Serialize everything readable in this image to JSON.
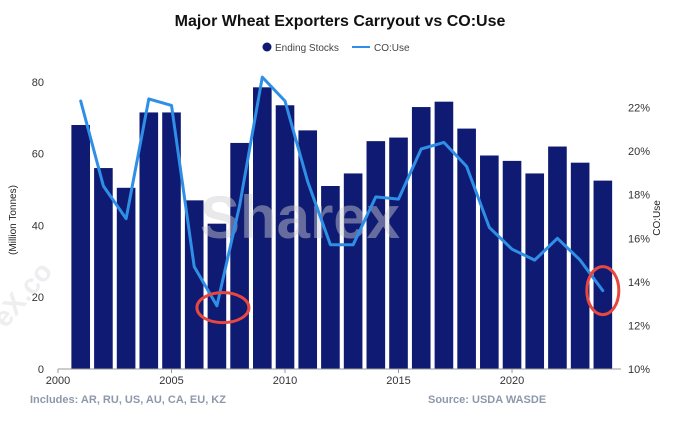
{
  "watermark": {
    "center_text": "Sharex",
    "side_text": "eX.co"
  },
  "chart_data": {
    "type": "bar",
    "title": "Major Wheat Exporters Carryout vs CO:Use",
    "xlabel": "",
    "ylabel": "(Million Tonnes)",
    "y2label": "CO:Use",
    "ylim": [
      0,
      85
    ],
    "y2lim": [
      10,
      24
    ],
    "xlim": [
      2000,
      2024.8
    ],
    "x_ticks": [
      2000,
      2005,
      2010,
      2015,
      2020
    ],
    "y_ticks": [
      0,
      20,
      40,
      60,
      80
    ],
    "y2_ticks": [
      10,
      12,
      14,
      16,
      18,
      20,
      22
    ],
    "y2_tick_labels": [
      "10%",
      "12%",
      "14%",
      "16%",
      "18%",
      "20%",
      "22%"
    ],
    "grid": false,
    "legend_position": "top",
    "colors": {
      "bars": "#0f1a72",
      "line": "#2f8fe6",
      "annotation": "#e8473f"
    },
    "x": [
      2001,
      2002,
      2003,
      2004,
      2005,
      2006,
      2007,
      2008,
      2009,
      2010,
      2011,
      2012,
      2013,
      2014,
      2015,
      2016,
      2017,
      2018,
      2019,
      2020,
      2021,
      2022,
      2023,
      2024
    ],
    "series": [
      {
        "name": "Ending Stocks",
        "kind": "bar",
        "axis": "left",
        "values": [
          68,
          56,
          50.5,
          71.5,
          71.5,
          47,
          40.5,
          63,
          78.5,
          73.5,
          66.5,
          51,
          54.5,
          63.5,
          64.5,
          73,
          74.5,
          67,
          59.5,
          58,
          54.5,
          62,
          57.5,
          52.5
        ]
      },
      {
        "name": "CO:Use",
        "kind": "line",
        "axis": "right",
        "values": [
          22.3,
          18.4,
          16.9,
          22.4,
          22.1,
          14.7,
          12.9,
          17.5,
          23.4,
          22.3,
          18.6,
          15.7,
          15.7,
          17.9,
          17.8,
          20.1,
          20.4,
          19.3,
          16.5,
          15.5,
          15.0,
          16.0,
          15.0,
          13.6
        ]
      }
    ],
    "annotations": [
      {
        "type": "circle",
        "x": 2007,
        "y2": 13.0
      },
      {
        "type": "circle",
        "x": 2024,
        "y2": 13.6
      }
    ],
    "footer_left": "Includes: AR, RU, US, AU, CA, EU, KZ",
    "footer_right": "Source: USDA WASDE"
  }
}
